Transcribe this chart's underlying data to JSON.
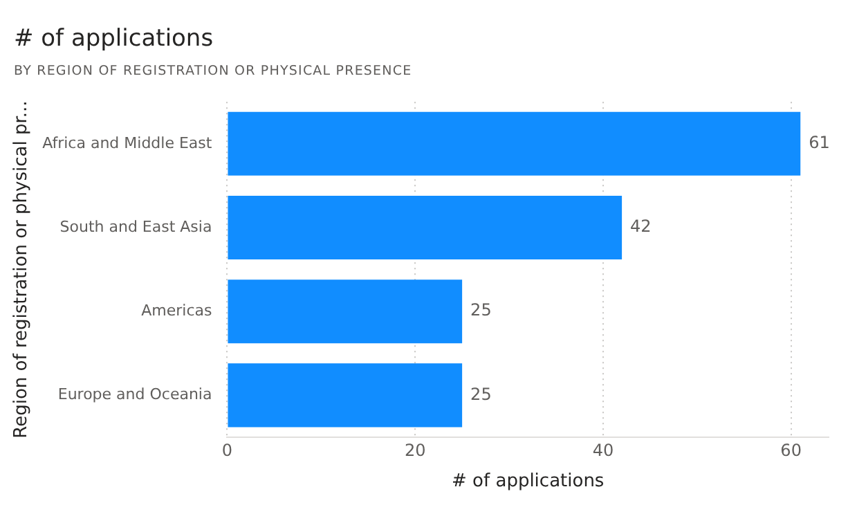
{
  "chart_data": {
    "type": "bar",
    "orientation": "horizontal",
    "title": "# of applications",
    "subtitle": "BY REGION OF REGISTRATION OR PHYSICAL PRESENCE",
    "xlabel": "# of applications",
    "ylabel": "Region of registration or physical pr...",
    "categories": [
      "Africa and Middle East",
      "South and East Asia",
      "Americas",
      "Europe and Oceania"
    ],
    "values": [
      61,
      42,
      25,
      25
    ],
    "color": "#118dff",
    "xlim": [
      0,
      64
    ],
    "xticks": [
      0,
      20,
      40,
      60
    ],
    "grid": "x",
    "data_labels": true,
    "legend": false
  }
}
